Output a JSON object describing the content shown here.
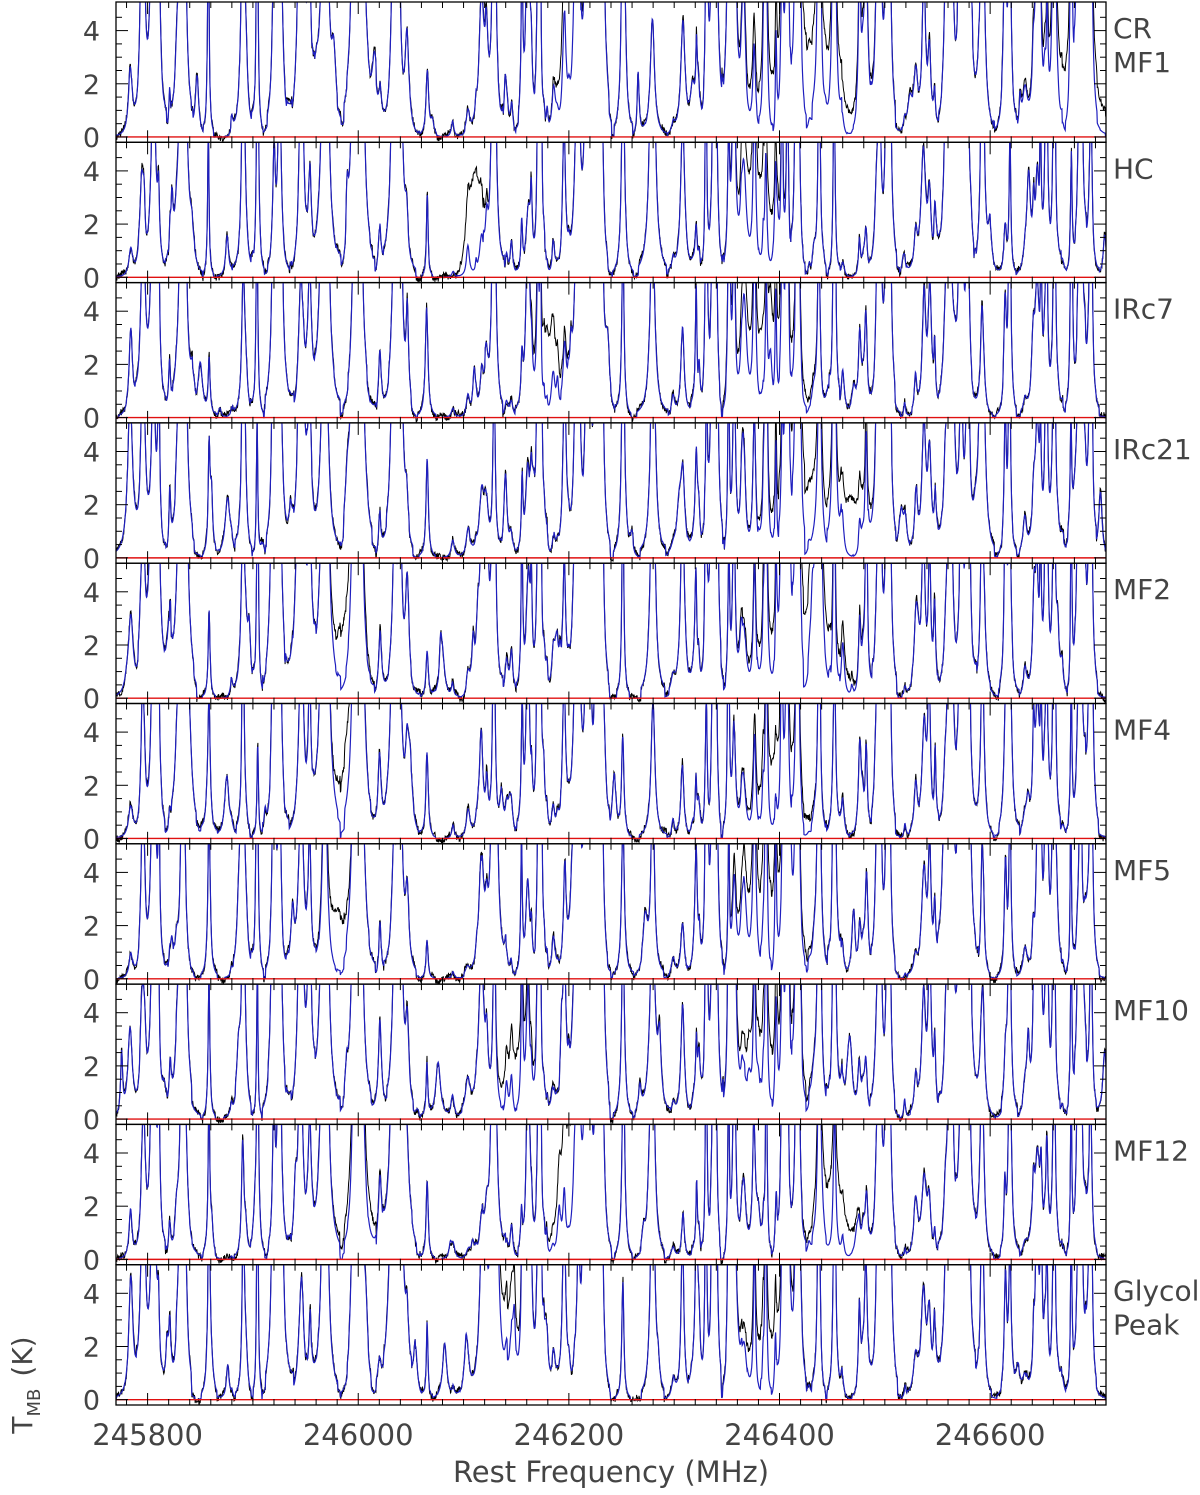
{
  "chart_data": {
    "type": "line",
    "title": "",
    "xlabel": "Rest Frequency (MHz)",
    "ylabel_main": "T",
    "ylabel_sub": "MB",
    "ylabel_unit": "(K)",
    "xlim": [
      245770,
      246710
    ],
    "ylim": [
      -0.2,
      5.0
    ],
    "x_ticks": [
      245800,
      246000,
      246200,
      246400,
      246600
    ],
    "x_tick_labels": [
      "245800",
      "246000",
      "246200",
      "246400",
      "246600"
    ],
    "y_ticks": [
      0,
      2,
      4
    ],
    "y_tick_labels": [
      "0",
      "2",
      "4"
    ],
    "baseline": 0,
    "colors": {
      "observed": "#000000",
      "model": "#1f1fbf",
      "baseline": "#e01010"
    },
    "panels": [
      {
        "name": "CR MF1",
        "label_lines": [
          "CR",
          "MF1"
        ],
        "seed": 11,
        "line_density": 1.3,
        "broad": [
          [
            246200,
            3.8,
            6
          ],
          [
            246420,
            3.0,
            30
          ],
          [
            246680,
            2.5,
            20
          ]
        ]
      },
      {
        "name": "HC",
        "label_lines": [
          "HC"
        ],
        "seed": 23,
        "line_density": 1.0,
        "broad": [
          [
            246110,
            3.6,
            6
          ],
          [
            246380,
            3.0,
            12
          ]
        ]
      },
      {
        "name": "IRc7",
        "label_lines": [
          "IRc7"
        ],
        "seed": 37,
        "line_density": 1.0,
        "broad": [
          [
            246180,
            2.6,
            8
          ],
          [
            246390,
            2.5,
            20
          ]
        ]
      },
      {
        "name": "IRc21",
        "label_lines": [
          "IRc21"
        ],
        "seed": 41,
        "line_density": 1.1,
        "broad": [
          [
            246420,
            2.5,
            20
          ],
          [
            246470,
            2.0,
            10
          ]
        ]
      },
      {
        "name": "MF2",
        "label_lines": [
          "MF2"
        ],
        "seed": 53,
        "line_density": 1.4,
        "broad": [
          [
            245990,
            2.5,
            10
          ],
          [
            246420,
            2.8,
            25
          ]
        ]
      },
      {
        "name": "MF4",
        "label_lines": [
          "MF4"
        ],
        "seed": 67,
        "line_density": 1.0,
        "broad": [
          [
            245990,
            2.5,
            8
          ],
          [
            246400,
            2.5,
            15
          ]
        ]
      },
      {
        "name": "MF5",
        "label_lines": [
          "MF5"
        ],
        "seed": 71,
        "line_density": 1.0,
        "broad": [
          [
            245980,
            2.2,
            8
          ],
          [
            246390,
            2.8,
            18
          ]
        ]
      },
      {
        "name": "MF10",
        "label_lines": [
          "MF10"
        ],
        "seed": 89,
        "line_density": 1.2,
        "broad": [
          [
            246150,
            2.0,
            10
          ],
          [
            246390,
            2.0,
            20
          ]
        ]
      },
      {
        "name": "MF12",
        "label_lines": [
          "MF12"
        ],
        "seed": 97,
        "line_density": 0.8,
        "broad": [
          [
            246000,
            1.6,
            10
          ],
          [
            246200,
            3.8,
            8
          ],
          [
            246450,
            2.5,
            12
          ]
        ]
      },
      {
        "name": "Glycol Peak",
        "label_lines": [
          "Glycol",
          "Peak"
        ],
        "seed": 103,
        "line_density": 1.1,
        "broad": [
          [
            246140,
            2.0,
            10
          ],
          [
            246390,
            2.2,
            15
          ]
        ]
      }
    ]
  }
}
